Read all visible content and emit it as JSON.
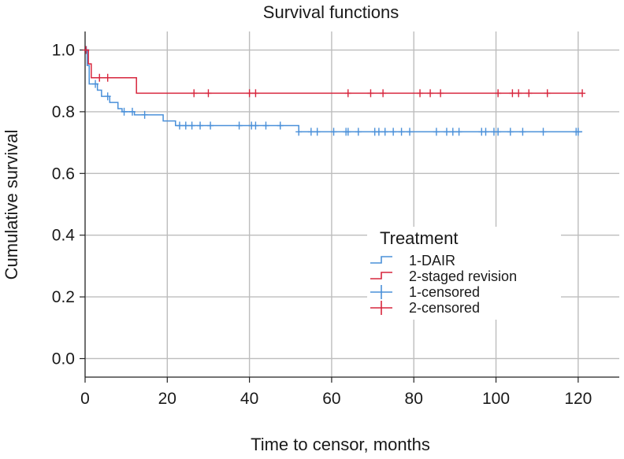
{
  "chart_data": {
    "type": "line",
    "title": "Survival functions",
    "xlabel": "Time to censor, months",
    "ylabel": "Cumulative survival",
    "xlim": [
      0,
      130
    ],
    "ylim": [
      -0.06,
      1.06
    ],
    "xticks": [
      0,
      20,
      40,
      60,
      80,
      100,
      120
    ],
    "yticks": [
      0.0,
      0.2,
      0.4,
      0.6,
      0.8,
      1.0
    ],
    "xtick_labels": [
      "0",
      "20",
      "40",
      "60",
      "80",
      "100",
      "120"
    ],
    "ytick_labels": [
      "0.0",
      "0.2",
      "0.4",
      "0.6",
      "0.8",
      "1.0"
    ],
    "grid": true,
    "legend": {
      "title": "Treatment",
      "placement": "center-right",
      "entries": [
        {
          "label": "1-DAIR",
          "marker": "step",
          "color": "#4a90d9"
        },
        {
          "label": "2-staged revision",
          "marker": "step",
          "color": "#d7263d"
        },
        {
          "label": "1-censored",
          "marker": "plus",
          "color": "#4a90d9"
        },
        {
          "label": "2-censored",
          "marker": "plus",
          "color": "#d7263d"
        }
      ]
    },
    "series": [
      {
        "name": "1-DAIR",
        "color": "#4a90d9",
        "step_x": [
          0,
          0.5,
          1.0,
          3.0,
          4.0,
          6.0,
          8.0,
          9.0,
          10.0,
          12.0,
          19.0,
          22.0,
          52.0,
          121.0
        ],
        "step_y": [
          1.0,
          0.95,
          0.89,
          0.87,
          0.85,
          0.83,
          0.81,
          0.8,
          0.8,
          0.79,
          0.77,
          0.755,
          0.735,
          0.735
        ],
        "censored_x": [
          0.3,
          2.5,
          5.5,
          9.5,
          11.5,
          14.5,
          23.0,
          24.5,
          26.0,
          28.0,
          30.5,
          37.5,
          40.5,
          41.5,
          44.0,
          47.5,
          52.0,
          55.0,
          56.5,
          60.5,
          63.5,
          64.0,
          66.5,
          70.5,
          71.5,
          73.0,
          75.0,
          77.0,
          79.0,
          85.5,
          88.0,
          89.5,
          91.0,
          96.5,
          97.5,
          99.5,
          100.5,
          103.5,
          106.5,
          111.5,
          119.5,
          120.0
        ]
      },
      {
        "name": "2-staged revision",
        "color": "#d7263d",
        "step_x": [
          0,
          0.8,
          1.5,
          12.5,
          121.0
        ],
        "step_y": [
          1.0,
          0.955,
          0.91,
          0.86,
          0.86
        ],
        "censored_x": [
          0.2,
          3.5,
          5.5,
          26.5,
          30.0,
          40.0,
          41.5,
          64.0,
          69.5,
          72.5,
          81.5,
          84.0,
          86.5,
          100.5,
          104.0,
          105.5,
          108.0,
          112.5,
          121.0
        ]
      }
    ]
  }
}
